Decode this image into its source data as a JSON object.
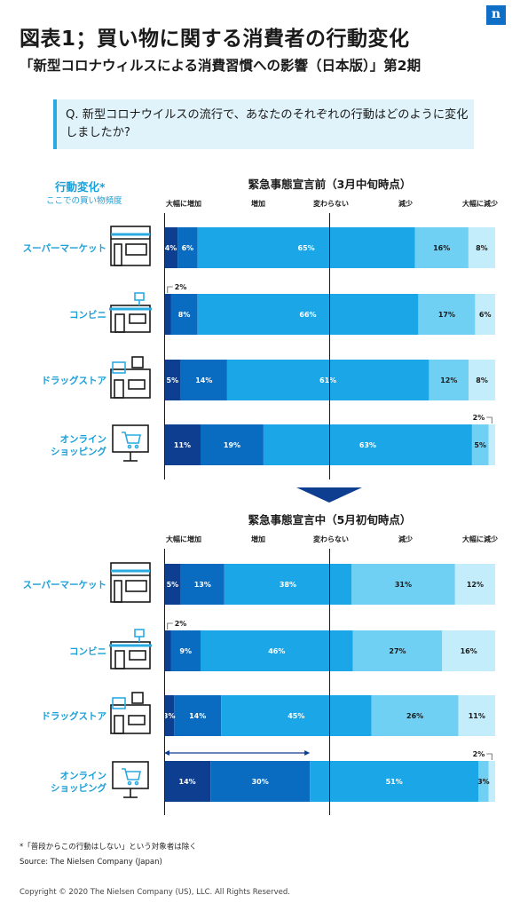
{
  "header": {
    "title": "図表1；買い物に関する消費者の行動変化",
    "subtitle": "「新型コロナウィルスによる消費習慣への影響（日本版）」第2期",
    "logo_text": "n"
  },
  "question": {
    "text": "Q. 新型コロナウイルスの流行で、あなたのそれぞれの行動はどのように変化しましたか?"
  },
  "legend": {
    "title": "行動変化*",
    "subtitle": "ここでの買い物頻度"
  },
  "footer": {
    "note": "*「普段からこの行動はしない」という対象者は除く",
    "source": "Source: The Nielsen Company (Japan)",
    "copyright": "Copyright © 2020 The Nielsen Company (US), LLC. All Rights Reserved."
  },
  "colors": {
    "s1": "#0d3e8f",
    "s2": "#0a6cc1",
    "s3": "#1ba6e8",
    "s4": "#6fd0f4",
    "s5": "#c3edfb",
    "label": "#1a9fd8",
    "arrow": "#0d3e8f"
  },
  "chart_data": [
    {
      "type": "bar",
      "orientation": "horizontal",
      "stacked": true,
      "title": "緊急事態宣言前（3月中旬時点）",
      "columns": [
        "大幅に増加",
        "増加",
        "変わらない",
        "減少",
        "大幅に減少"
      ],
      "categories": [
        "スーパーマーケット",
        "コンビニ",
        "ドラッグストア",
        "オンライン\nショッピング"
      ],
      "values": [
        [
          4,
          6,
          65,
          16,
          8
        ],
        [
          2,
          8,
          66,
          17,
          6
        ],
        [
          5,
          14,
          61,
          12,
          8
        ],
        [
          11,
          19,
          63,
          5,
          2
        ]
      ],
      "labels": [
        [
          "4%",
          "6%",
          "65%",
          "16%",
          "8%"
        ],
        [
          "2%",
          "8%",
          "66%",
          "17%",
          "6%"
        ],
        [
          "5%",
          "14%",
          "61%",
          "12%",
          "8%"
        ],
        [
          "11%",
          "19%",
          "63%",
          "5%",
          "2%"
        ]
      ],
      "outside": [
        {
          "row": 1,
          "col": 0,
          "pos": "above-left"
        },
        {
          "row": 3,
          "col": 4,
          "pos": "above-right"
        }
      ]
    },
    {
      "type": "bar",
      "orientation": "horizontal",
      "stacked": true,
      "title": "緊急事態宣言中（5月初旬時点）",
      "columns": [
        "大幅に増加",
        "増加",
        "変わらない",
        "減少",
        "大幅に減少"
      ],
      "categories": [
        "スーパーマーケット",
        "コンビニ",
        "ドラッグストア",
        "オンライン\nショッピング"
      ],
      "values": [
        [
          5,
          13,
          38,
          31,
          12
        ],
        [
          2,
          9,
          46,
          27,
          16
        ],
        [
          3,
          14,
          45,
          26,
          11
        ],
        [
          14,
          30,
          51,
          3,
          2
        ]
      ],
      "labels": [
        [
          "5%",
          "13%",
          "38%",
          "31%",
          "12%"
        ],
        [
          "2%",
          "9%",
          "46%",
          "27%",
          "16%"
        ],
        [
          "3%",
          "14%",
          "45%",
          "26%",
          "11%"
        ],
        [
          "14%",
          "30%",
          "51%",
          "3%",
          "2%"
        ]
      ],
      "outside": [
        {
          "row": 1,
          "col": 0,
          "pos": "above-left"
        },
        {
          "row": 3,
          "col": 4,
          "pos": "above-right"
        }
      ],
      "highlight": {
        "row": 3,
        "from_col": 0,
        "to_col": 1
      }
    }
  ]
}
